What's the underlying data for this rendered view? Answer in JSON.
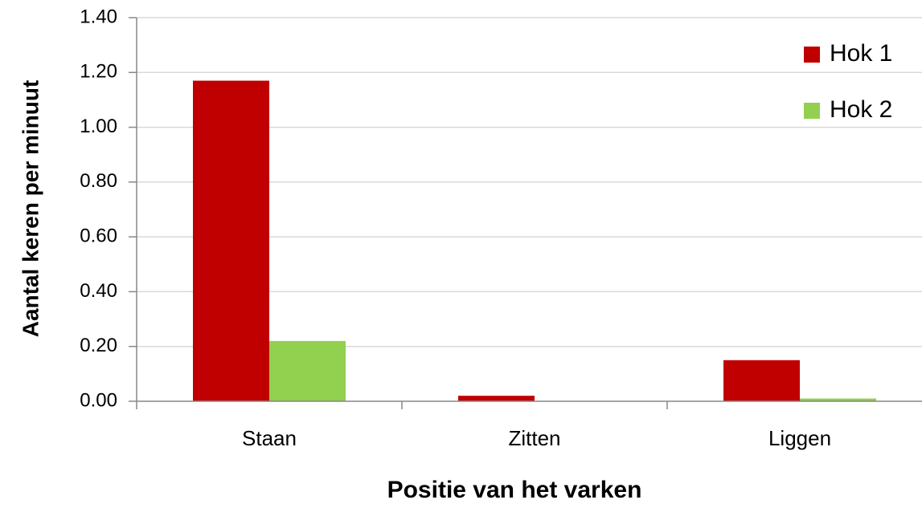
{
  "chart_data": {
    "type": "bar",
    "categories": [
      "Staan",
      "Zitten",
      "Liggen"
    ],
    "series": [
      {
        "name": "Hok 1",
        "color": "#c00000",
        "values": [
          1.17,
          0.02,
          0.15
        ]
      },
      {
        "name": "Hok 2",
        "color": "#92d050",
        "values": [
          0.22,
          0,
          0.01
        ]
      }
    ],
    "xlabel": "Positie van het varken",
    "ylabel": "Aantal keren per minuut",
    "ylim": [
      0,
      1.4
    ],
    "yticks": [
      {
        "value": 0,
        "label": "0.00"
      },
      {
        "value": 0.2,
        "label": "0.20"
      },
      {
        "value": 0.4,
        "label": "0.40"
      },
      {
        "value": 0.6,
        "label": "0.60"
      },
      {
        "value": 0.8,
        "label": "0.80"
      },
      {
        "value": 1,
        "label": "1.00"
      },
      {
        "value": 1.2,
        "label": "1.20"
      },
      {
        "value": 1.4,
        "label": "1.40"
      }
    ],
    "grid": true,
    "legend": "upper right"
  }
}
